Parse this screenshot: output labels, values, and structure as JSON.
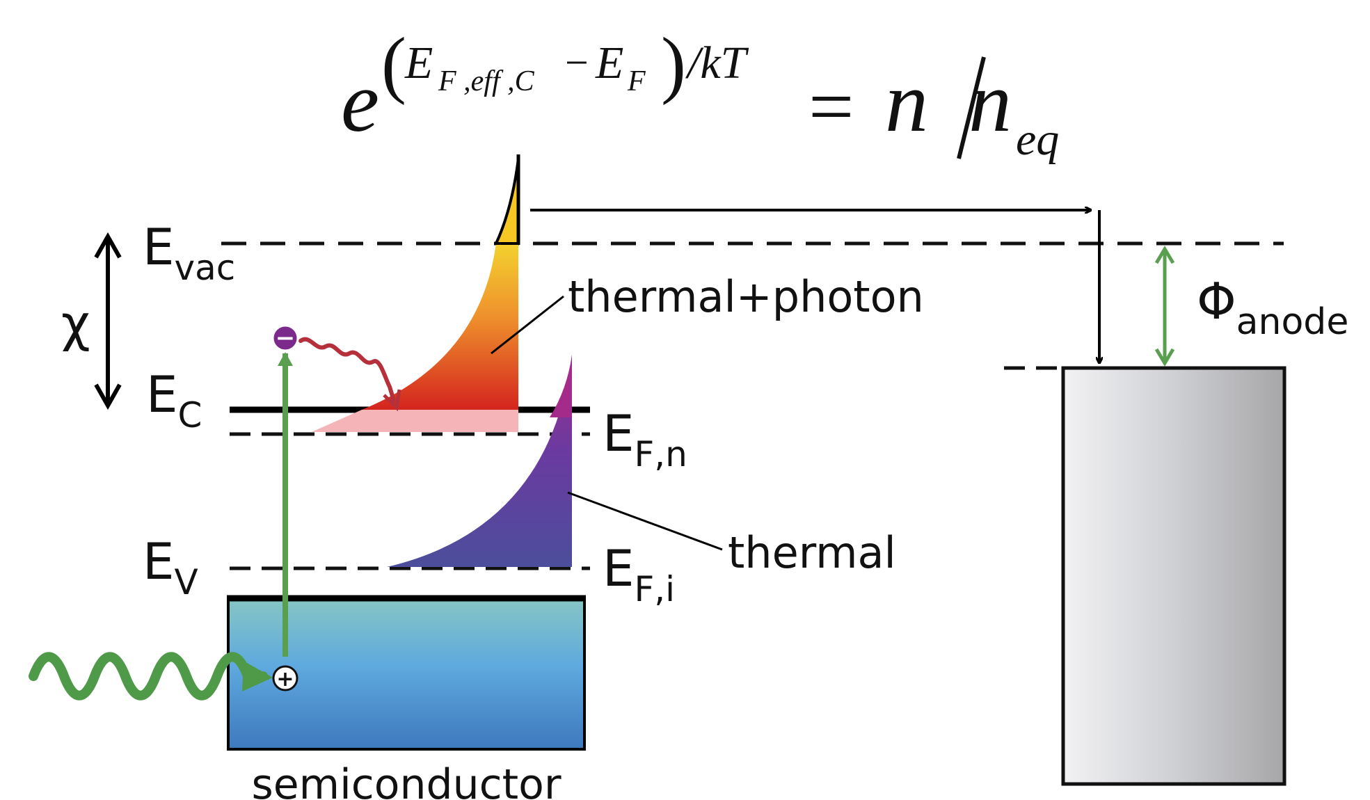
{
  "equation": {
    "base": "e",
    "paren_open": "(",
    "ef_eff": "E",
    "ef_eff_sub": "F ,eff ,C",
    "minus": "−",
    "ef": "E",
    "ef_sub": "F",
    "paren_close": ")",
    "slash_kt": "/kT",
    "equals": "=",
    "n": "n",
    "slash": "/",
    "n_eq": "n",
    "n_eq_sub": "eq"
  },
  "levels": {
    "evac": {
      "main": "E",
      "sub": "vac"
    },
    "ec": {
      "main": "E",
      "sub": "C"
    },
    "ev": {
      "main": "E",
      "sub": "V"
    },
    "efn": {
      "main": "E",
      "sub": "F,n"
    },
    "efi": {
      "main": "E",
      "sub": "F,i"
    }
  },
  "labels": {
    "chi": "χ",
    "thermal_photon": "thermal+photon",
    "thermal": "thermal",
    "phi": "Φ",
    "phi_sub": "anode",
    "semiconductor": "semiconductor"
  },
  "particles": {
    "electron": "−",
    "hole": "+"
  },
  "colors": {
    "photon_wave": "#4f9a48",
    "excitation_arrow": "#5a9e50",
    "electron_fill": "#7b2a8c",
    "relaxation_wave": "#b5303a",
    "semiconductor_top": "#86c6c4",
    "semiconductor_bottom": "#3e7fc0",
    "thermal_photon_top": "#f3d22e",
    "thermal_photon_bottom": "#d42a1e",
    "thermal_top": "#a52b8a",
    "thermal_bottom": "#4c4e9c",
    "anode_light": "#f2f2f4",
    "anode_dark": "#a7a7a9"
  }
}
